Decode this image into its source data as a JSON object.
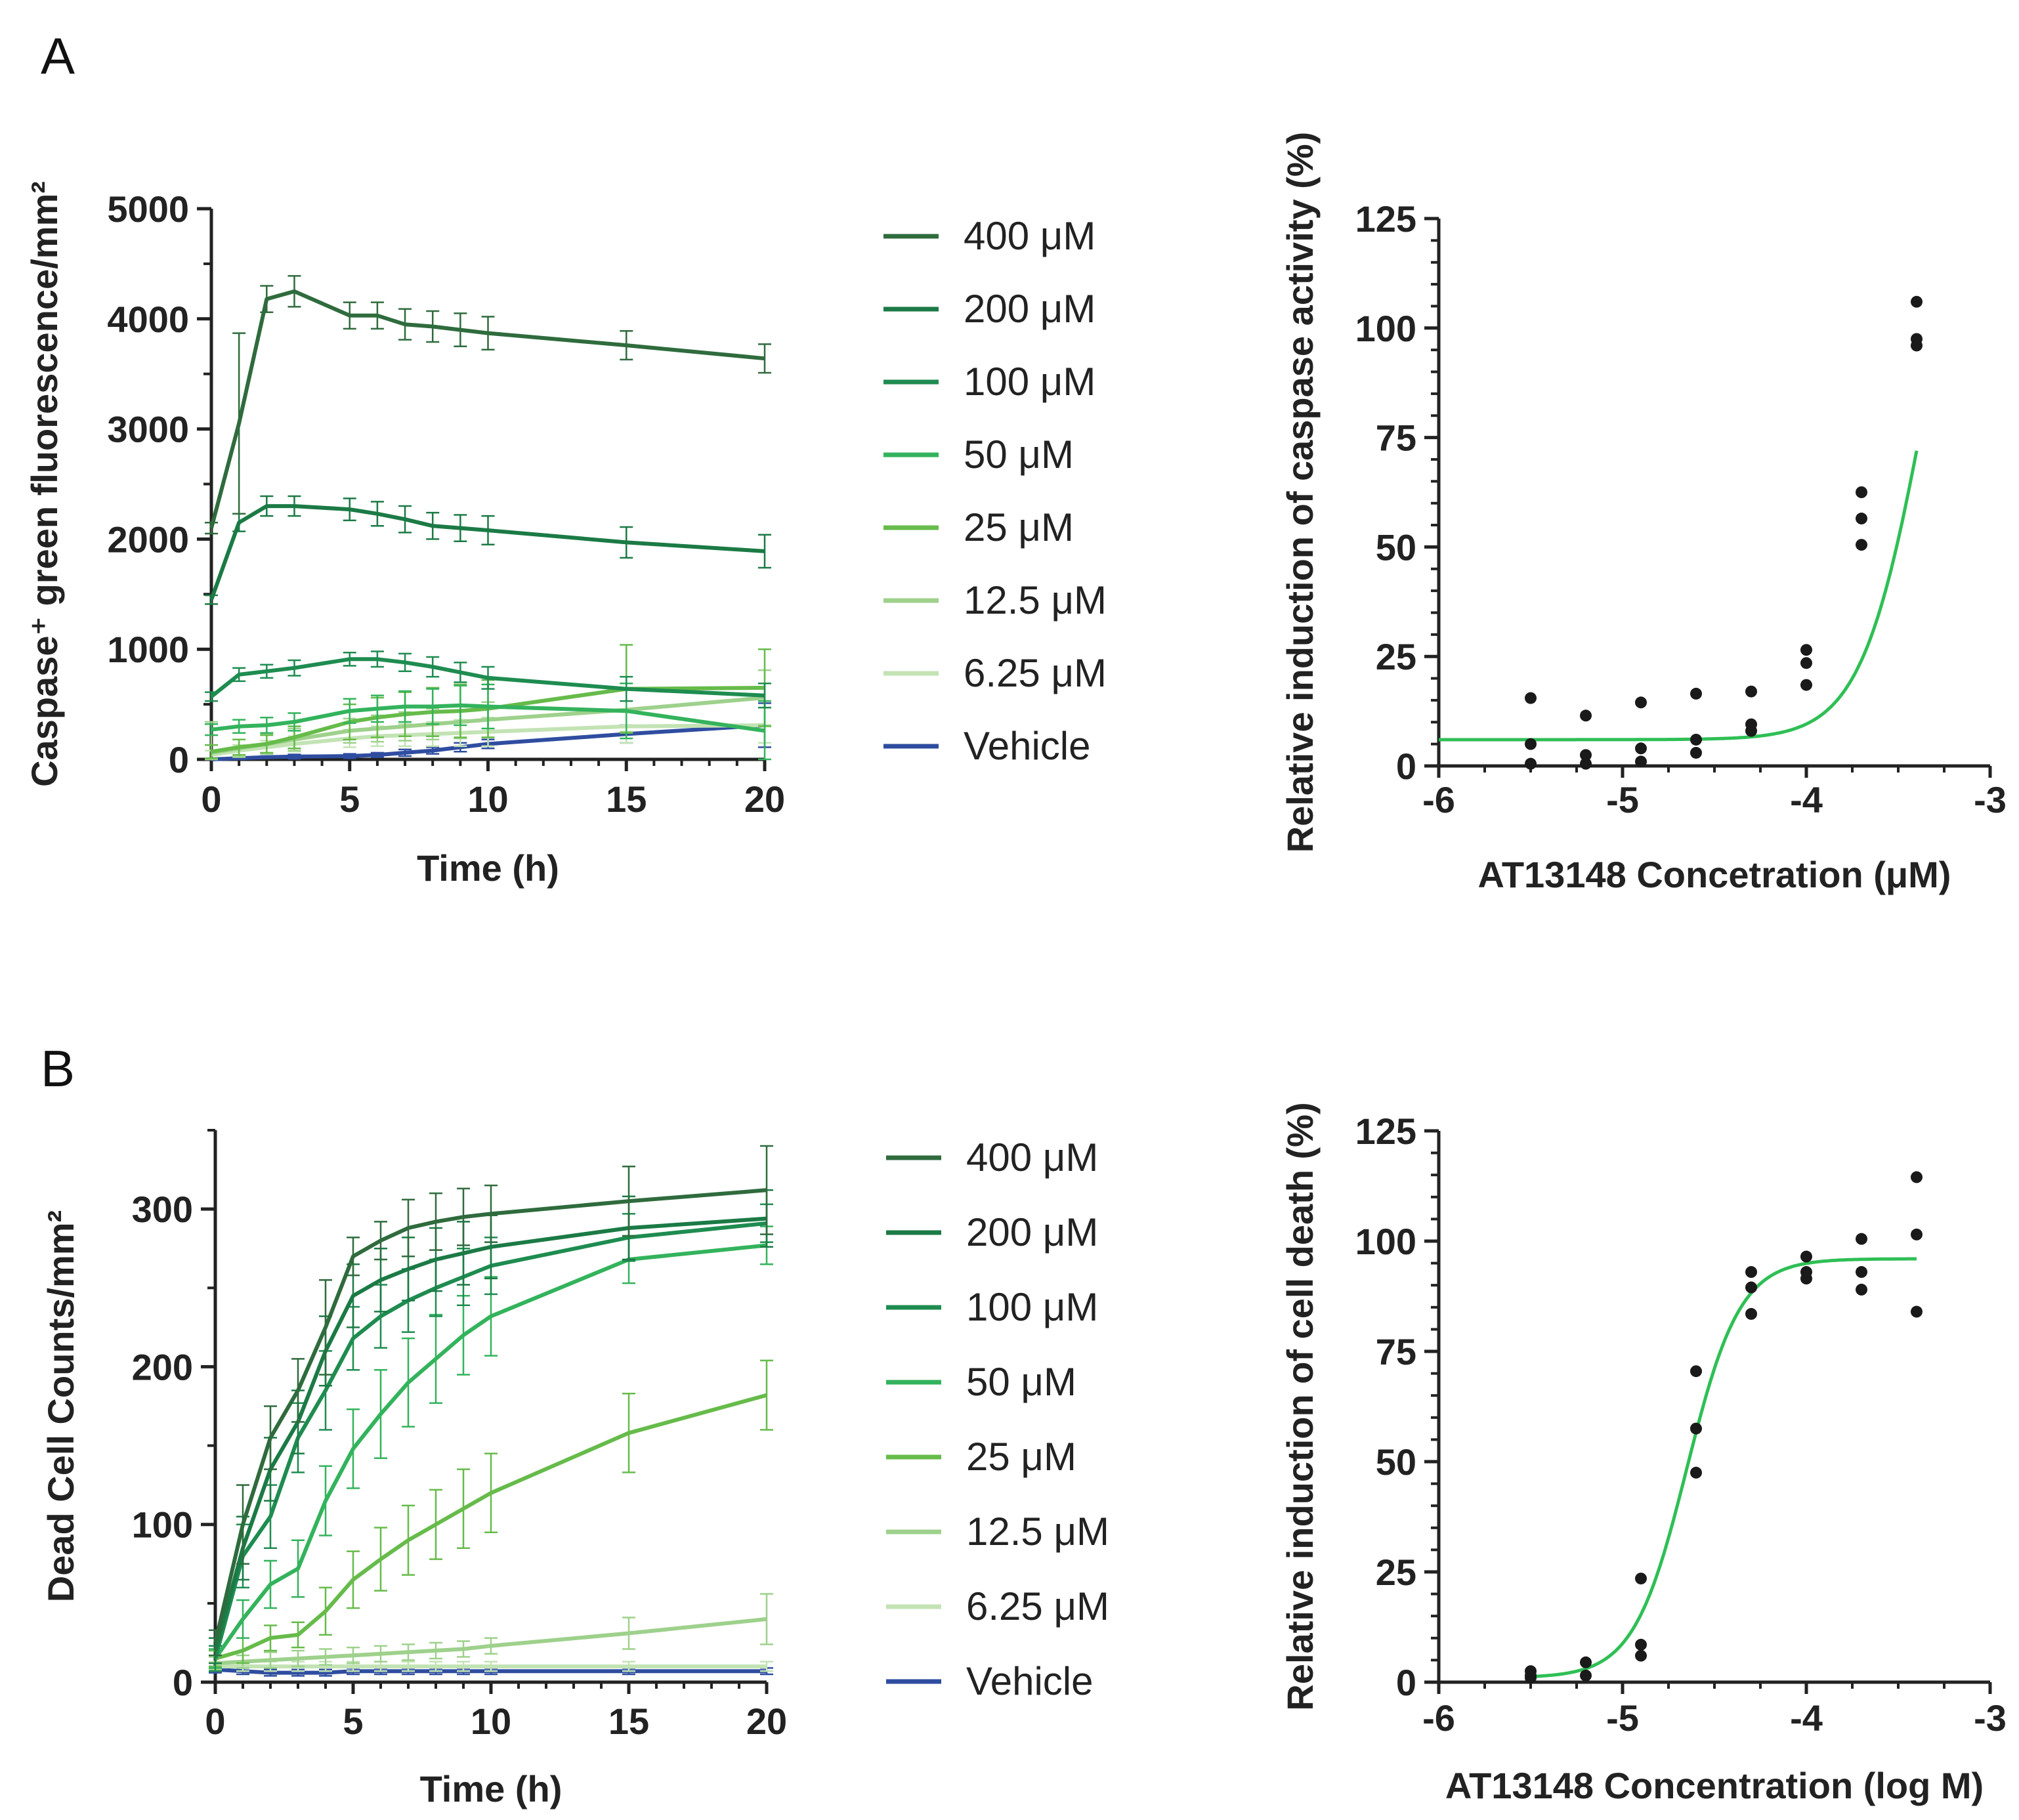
{
  "panels": {
    "A": "A",
    "B": "B"
  },
  "colors": {
    "400": "#2f6b3d",
    "200": "#1b7a45",
    "100": "#1e8c50",
    "50": "#33b35c",
    "25": "#66bb4a",
    "12.5": "#9ed18c",
    "6.25": "#c3e3b4",
    "vehicle": "#2f4da0",
    "dot": "#1a1a1a",
    "fit": "#2fbf55"
  },
  "legend": {
    "A": [
      {
        "label": "400 μM",
        "color": "#2f6b3d"
      },
      {
        "label": "200 μM",
        "color": "#1b7a45"
      },
      {
        "label": "100 μM",
        "color": "#1e8c50"
      },
      {
        "label": "50 μM",
        "color": "#33b35c"
      },
      {
        "label": "25 μM",
        "color": "#66bb4a"
      },
      {
        "label": "12.5 μM",
        "color": "#9ed18c"
      },
      {
        "label": "6.25 μM",
        "color": "#c3e3b4"
      },
      {
        "label": "Vehicle",
        "color": "#2f4da0"
      }
    ],
    "B": [
      {
        "label": "400 μM",
        "color": "#2f6b3d"
      },
      {
        "label": "200 μM",
        "color": "#1b7a45"
      },
      {
        "label": "100 μM",
        "color": "#1e8c50"
      },
      {
        "label": "50 μM",
        "color": "#33b35c"
      },
      {
        "label": "25 μM",
        "color": "#66bb4a"
      },
      {
        "label": "12.5 μM",
        "color": "#9ed18c"
      },
      {
        "label": "6.25 μM",
        "color": "#c3e3b4"
      },
      {
        "label": "Vehicle",
        "color": "#2f4da0"
      }
    ]
  },
  "chart_data": [
    {
      "id": "A-time",
      "type": "line",
      "xlabel": "Time (h)",
      "ylabel": "Caspase⁺ green fluorescence/mm²",
      "xlim": [
        0,
        20
      ],
      "ylim": [
        0,
        5000
      ],
      "xticks": [
        0,
        5,
        10,
        15,
        20
      ],
      "xtick_labels": [
        "0",
        "5",
        "10",
        "15",
        "20"
      ],
      "yticks": [
        0,
        1000,
        2000,
        3000,
        4000,
        5000
      ],
      "ytick_labels": [
        "0",
        "1000",
        "2000",
        "3000",
        "4000",
        "5000"
      ],
      "series": [
        {
          "name": "400 μM",
          "color": "#2f6b3d",
          "x": [
            0,
            1,
            2,
            3,
            5,
            6,
            7,
            8,
            9,
            10,
            15,
            20
          ],
          "y": [
            2100,
            3050,
            4180,
            4250,
            4030,
            4030,
            3950,
            3930,
            3900,
            3870,
            3760,
            3640
          ],
          "err": [
            50,
            820,
            120,
            140,
            120,
            120,
            140,
            140,
            150,
            150,
            130,
            130
          ]
        },
        {
          "name": "200 μM",
          "color": "#1b7a45",
          "x": [
            0,
            1,
            2,
            3,
            5,
            6,
            7,
            8,
            9,
            10,
            15,
            20
          ],
          "y": [
            1450,
            2150,
            2300,
            2300,
            2270,
            2230,
            2180,
            2120,
            2100,
            2080,
            1970,
            1890
          ],
          "err": [
            40,
            80,
            90,
            90,
            100,
            110,
            120,
            120,
            120,
            130,
            140,
            150
          ]
        },
        {
          "name": "100 μM",
          "color": "#1e8c50",
          "x": [
            0,
            1,
            2,
            3,
            5,
            6,
            7,
            8,
            9,
            10,
            15,
            20
          ],
          "y": [
            570,
            770,
            800,
            830,
            910,
            910,
            880,
            840,
            790,
            740,
            640,
            580
          ],
          "err": [
            40,
            60,
            60,
            70,
            60,
            70,
            80,
            90,
            90,
            100,
            110,
            110
          ]
        },
        {
          "name": "50 μM",
          "color": "#33b35c",
          "x": [
            0,
            1,
            2,
            3,
            5,
            6,
            7,
            8,
            9,
            10,
            15,
            20
          ],
          "y": [
            270,
            300,
            310,
            340,
            440,
            460,
            480,
            480,
            490,
            480,
            440,
            260
          ],
          "err": [
            50,
            60,
            70,
            80,
            110,
            120,
            140,
            160,
            180,
            200,
            250,
            270
          ]
        },
        {
          "name": "25 μM",
          "color": "#66bb4a",
          "x": [
            0,
            1,
            2,
            3,
            5,
            6,
            7,
            8,
            9,
            10,
            15,
            20
          ],
          "y": [
            70,
            110,
            140,
            200,
            340,
            380,
            410,
            430,
            440,
            460,
            640,
            650
          ],
          "err": [
            60,
            70,
            80,
            100,
            160,
            180,
            200,
            220,
            240,
            260,
            400,
            350
          ]
        },
        {
          "name": "12.5 μM",
          "color": "#9ed18c",
          "x": [
            0,
            1,
            2,
            3,
            5,
            6,
            7,
            8,
            9,
            10,
            15,
            20
          ],
          "y": [
            60,
            100,
            140,
            180,
            260,
            280,
            300,
            320,
            340,
            360,
            450,
            560
          ],
          "err": [
            280,
            80,
            90,
            100,
            110,
            120,
            130,
            140,
            150,
            160,
            200,
            250
          ]
        },
        {
          "name": "6.25 μM",
          "color": "#c3e3b4",
          "x": [
            0,
            1,
            2,
            3,
            5,
            6,
            7,
            8,
            9,
            10,
            15,
            20
          ],
          "y": [
            40,
            80,
            110,
            140,
            190,
            210,
            220,
            230,
            240,
            250,
            300,
            310
          ],
          "err": [
            40,
            50,
            60,
            70,
            80,
            90,
            100,
            110,
            120,
            130,
            150,
            160
          ]
        },
        {
          "name": "Vehicle",
          "color": "#2f4da0",
          "x": [
            0,
            1,
            2,
            3,
            5,
            6,
            7,
            8,
            9,
            10,
            15,
            20
          ],
          "y": [
            0,
            10,
            20,
            25,
            30,
            40,
            60,
            80,
            110,
            140,
            230,
            310
          ],
          "err": [
            10,
            10,
            10,
            20,
            20,
            20,
            30,
            30,
            40,
            40,
            80,
            200
          ]
        }
      ]
    },
    {
      "id": "A-dose",
      "type": "scatter",
      "xlabel": "AT13148 Concetration (μM)",
      "ylabel": "Relative induction of caspase activity (%)",
      "xlim": [
        -6,
        -3
      ],
      "ylim": [
        0,
        125
      ],
      "xticks": [
        -6,
        -5,
        -4,
        -3
      ],
      "xtick_labels": [
        "-6",
        "-5",
        "-4",
        "-3"
      ],
      "yticks": [
        0,
        25,
        50,
        75,
        100,
        125
      ],
      "ytick_labels": [
        "0",
        "25",
        "50",
        "75",
        "100",
        "125"
      ],
      "points": [
        [
          -5.5,
          15.5
        ],
        [
          -5.5,
          5
        ],
        [
          -5.5,
          0.5
        ],
        [
          -5.2,
          11.5
        ],
        [
          -5.2,
          2.5
        ],
        [
          -5.2,
          0.5
        ],
        [
          -4.9,
          14.5
        ],
        [
          -4.9,
          4
        ],
        [
          -4.9,
          1
        ],
        [
          -4.6,
          16.5
        ],
        [
          -4.6,
          6
        ],
        [
          -4.6,
          3
        ],
        [
          -4.3,
          17
        ],
        [
          -4.3,
          9.5
        ],
        [
          -4.3,
          8
        ],
        [
          -4.0,
          26.5
        ],
        [
          -4.0,
          23.5
        ],
        [
          -4.0,
          18.5
        ],
        [
          -3.7,
          62.5
        ],
        [
          -3.7,
          56.5
        ],
        [
          -3.7,
          50.5
        ],
        [
          -3.4,
          106
        ],
        [
          -3.4,
          97.5
        ],
        [
          -3.4,
          96
        ]
      ],
      "fit": {
        "bottom": 6,
        "top": 160,
        "logEC50": -3.35,
        "hill": 2.5,
        "x_range": [
          -6,
          -3.4
        ]
      }
    },
    {
      "id": "B-time",
      "type": "line",
      "xlabel": "Time (h)",
      "ylabel": "Dead Cell Counts/mm²",
      "xlim": [
        0,
        20
      ],
      "ylim": [
        0,
        350
      ],
      "xticks": [
        0,
        5,
        10,
        15,
        20
      ],
      "xtick_labels": [
        "0",
        "5",
        "10",
        "15",
        "20"
      ],
      "yticks": [
        0,
        100,
        200,
        300
      ],
      "ytick_labels": [
        "0",
        "100",
        "200",
        "300"
      ],
      "series": [
        {
          "name": "400 μM",
          "color": "#2f6b3d",
          "x": [
            0,
            1,
            2,
            3,
            4,
            5,
            6,
            7,
            8,
            9,
            10,
            15,
            20
          ],
          "y": [
            25,
            100,
            155,
            185,
            225,
            270,
            280,
            288,
            292,
            295,
            297,
            305,
            312
          ],
          "err": [
            8,
            25,
            20,
            20,
            30,
            12,
            12,
            18,
            18,
            18,
            18,
            22,
            28
          ]
        },
        {
          "name": "200 μM",
          "color": "#1b7a45",
          "x": [
            0,
            1,
            2,
            3,
            4,
            5,
            6,
            7,
            8,
            9,
            10,
            15,
            20
          ],
          "y": [
            20,
            85,
            135,
            165,
            210,
            245,
            255,
            262,
            268,
            272,
            276,
            288,
            294
          ],
          "err": [
            8,
            20,
            20,
            20,
            22,
            20,
            20,
            20,
            20,
            20,
            20,
            20,
            18
          ]
        },
        {
          "name": "100 μM",
          "color": "#1e8c50",
          "x": [
            0,
            1,
            2,
            3,
            4,
            5,
            6,
            7,
            8,
            9,
            10,
            15,
            20
          ],
          "y": [
            15,
            80,
            105,
            155,
            185,
            218,
            232,
            242,
            250,
            257,
            264,
            282,
            291
          ],
          "err": [
            8,
            20,
            20,
            22,
            25,
            20,
            20,
            20,
            18,
            18,
            18,
            15,
            12
          ]
        },
        {
          "name": "50 μM",
          "color": "#33b35c",
          "x": [
            0,
            1,
            2,
            3,
            4,
            5,
            6,
            7,
            8,
            9,
            10,
            15,
            20
          ],
          "y": [
            15,
            40,
            62,
            72,
            115,
            148,
            170,
            190,
            205,
            220,
            232,
            268,
            277
          ],
          "err": [
            6,
            12,
            15,
            18,
            22,
            25,
            28,
            28,
            28,
            25,
            25,
            15,
            12
          ]
        },
        {
          "name": "25 μM",
          "color": "#66bb4a",
          "x": [
            0,
            1,
            2,
            3,
            4,
            5,
            6,
            7,
            8,
            9,
            10,
            15,
            20
          ],
          "y": [
            15,
            20,
            28,
            30,
            45,
            65,
            78,
            90,
            100,
            110,
            120,
            158,
            182
          ],
          "err": [
            5,
            8,
            8,
            8,
            15,
            18,
            20,
            22,
            22,
            25,
            25,
            25,
            22
          ]
        },
        {
          "name": "12.5 μM",
          "color": "#9ed18c",
          "x": [
            0,
            1,
            2,
            3,
            4,
            5,
            6,
            7,
            8,
            9,
            10,
            15,
            20
          ],
          "y": [
            12,
            13,
            14,
            15,
            16,
            17,
            18,
            19,
            20,
            21,
            23,
            31,
            40
          ],
          "err": [
            4,
            4,
            5,
            5,
            5,
            5,
            5,
            5,
            5,
            5,
            5,
            10,
            16
          ]
        },
        {
          "name": "6.25 μM",
          "color": "#c3e3b4",
          "x": [
            0,
            1,
            2,
            3,
            4,
            5,
            6,
            7,
            8,
            9,
            10,
            15,
            20
          ],
          "y": [
            10,
            10,
            10,
            10,
            10,
            10,
            10,
            10,
            10,
            10,
            10,
            10,
            10
          ],
          "err": [
            3,
            3,
            3,
            3,
            3,
            3,
            3,
            3,
            3,
            3,
            3,
            3,
            3
          ]
        },
        {
          "name": "Vehicle",
          "color": "#2f4da0",
          "x": [
            0,
            1,
            2,
            3,
            4,
            5,
            6,
            7,
            8,
            9,
            10,
            15,
            20
          ],
          "y": [
            8,
            7,
            6,
            6,
            6,
            7,
            7,
            7,
            7,
            7,
            7,
            7,
            7
          ],
          "err": [
            2,
            2,
            2,
            2,
            2,
            2,
            2,
            2,
            2,
            2,
            2,
            2,
            2
          ]
        }
      ]
    },
    {
      "id": "B-dose",
      "type": "scatter",
      "xlabel": "AT13148 Concentration (log M)",
      "ylabel": "Relative induction of cell death (%)",
      "xlim": [
        -6,
        -3
      ],
      "ylim": [
        0,
        125
      ],
      "xticks": [
        -6,
        -5,
        -4,
        -3
      ],
      "xtick_labels": [
        "-6",
        "-5",
        "-4",
        "-3"
      ],
      "yticks": [
        0,
        25,
        50,
        75,
        100,
        125
      ],
      "ytick_labels": [
        "0",
        "25",
        "50",
        "75",
        "100",
        "125"
      ],
      "points": [
        [
          -5.5,
          2.5
        ],
        [
          -5.5,
          1.5
        ],
        [
          -5.5,
          1
        ],
        [
          -5.2,
          4.5
        ],
        [
          -5.2,
          1.5
        ],
        [
          -4.9,
          23.5
        ],
        [
          -4.9,
          8.5
        ],
        [
          -4.9,
          6
        ],
        [
          -4.6,
          70.5
        ],
        [
          -4.6,
          57.5
        ],
        [
          -4.6,
          47.5
        ],
        [
          -4.3,
          93
        ],
        [
          -4.3,
          89.5
        ],
        [
          -4.3,
          83.5
        ],
        [
          -4.0,
          96.5
        ],
        [
          -4.0,
          93
        ],
        [
          -4.0,
          91.5
        ],
        [
          -3.7,
          100.5
        ],
        [
          -3.7,
          93
        ],
        [
          -3.7,
          89
        ],
        [
          -3.4,
          114.5
        ],
        [
          -3.4,
          101.5
        ],
        [
          -3.4,
          84
        ]
      ],
      "fit": {
        "bottom": 1,
        "top": 96,
        "logEC50": -4.65,
        "hill": 3.0,
        "x_range": [
          -5.5,
          -3.4
        ]
      }
    }
  ]
}
